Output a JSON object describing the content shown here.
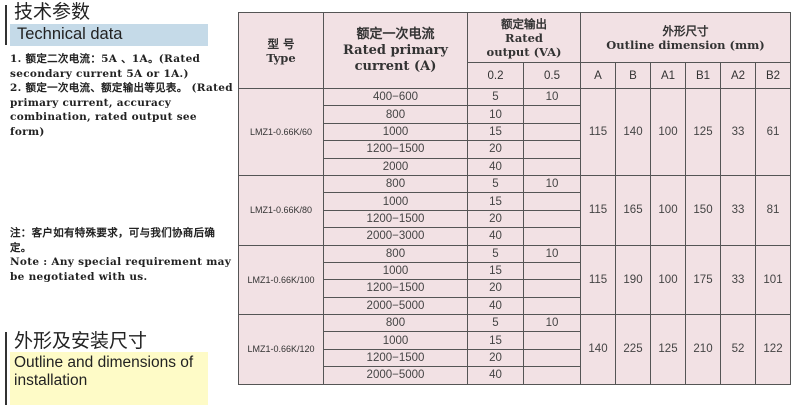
{
  "technical": {
    "title_cn": "技术参数",
    "title_en": "Technical data",
    "notes": [
      "1. 额定二次电流：5A 、1A。(Rated secondary current 5A or 1A.)",
      "2. 额定一次电流、额定输出等见表。 (Rated primary current, accuracy combination, rated output see form)"
    ],
    "note_cn": "注：客户如有特殊要求，可与我们协商后确定。",
    "note_en": "Note : Any special requirement may be negotiated with us."
  },
  "outline": {
    "title_cn": "外形及安装尺寸",
    "title_en": "Outline and dimensions of installation"
  },
  "table": {
    "headers": {
      "type_cn": "型 号",
      "type_en": "Type",
      "current_cn": "额定一次电流",
      "current_en": "Rated primary current (A)",
      "output_cn": "额定输出",
      "output_en": "Rated output (VA)",
      "dim_cn": "外形尺寸",
      "dim_en": "Outline dimension (mm)",
      "output_cols": [
        "0.2",
        "0.5"
      ],
      "dim_cols": [
        "A",
        "B",
        "A1",
        "B1",
        "A2",
        "B2"
      ]
    },
    "groups": [
      {
        "type": "LMZ1-0.66K/60",
        "dims": [
          "115",
          "140",
          "100",
          "125",
          "33",
          "61"
        ],
        "rows": [
          [
            "400−600",
            "5",
            "10"
          ],
          [
            "800",
            "10",
            ""
          ],
          [
            "1000",
            "15",
            ""
          ],
          [
            "1200−1500",
            "20",
            ""
          ],
          [
            "2000",
            "40",
            ""
          ]
        ]
      },
      {
        "type": "LMZ1-0.66K/80",
        "dims": [
          "115",
          "165",
          "100",
          "150",
          "33",
          "81"
        ],
        "rows": [
          [
            "800",
            "5",
            "10"
          ],
          [
            "1000",
            "15",
            ""
          ],
          [
            "1200−1500",
            "20",
            ""
          ],
          [
            "2000−3000",
            "40",
            ""
          ]
        ]
      },
      {
        "type": "LMZ1-0.66K/100",
        "dims": [
          "115",
          "190",
          "100",
          "175",
          "33",
          "101"
        ],
        "rows": [
          [
            "800",
            "5",
            "10"
          ],
          [
            "1000",
            "15",
            ""
          ],
          [
            "1200−1500",
            "20",
            ""
          ],
          [
            "2000−5000",
            "40",
            ""
          ]
        ]
      },
      {
        "type": "LMZ1-0.66K/120",
        "dims": [
          "140",
          "225",
          "125",
          "210",
          "52",
          "122"
        ],
        "rows": [
          [
            "800",
            "5",
            "10"
          ],
          [
            "1000",
            "15",
            ""
          ],
          [
            "1200−1500",
            "20",
            ""
          ],
          [
            "2000−5000",
            "40",
            ""
          ]
        ]
      }
    ]
  },
  "colors": {
    "header_box": "#c5dae8",
    "outline_box": "#fefbc7",
    "table_bg": "#f2e1e4"
  }
}
